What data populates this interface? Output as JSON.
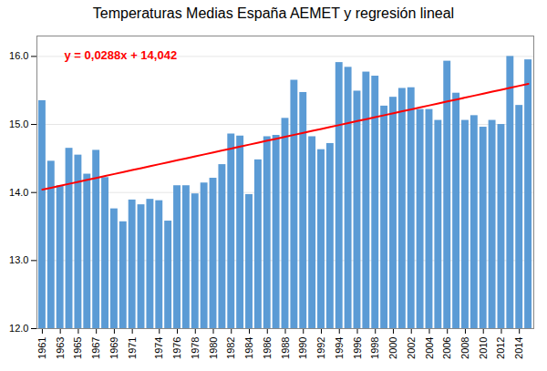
{
  "chart_data": {
    "type": "bar",
    "title": "Temperaturas Medias España AEMET y regresión lineal",
    "categories": [
      "1961",
      null,
      "1963",
      null,
      "1965",
      null,
      "1967",
      null,
      "1969",
      null,
      "1971",
      null,
      null,
      "1974",
      null,
      "1976",
      null,
      "1978",
      null,
      "1980",
      null,
      "1982",
      null,
      "1984",
      null,
      "1986",
      null,
      "1988",
      null,
      "1990",
      null,
      "1992",
      null,
      "1994",
      null,
      "1996",
      null,
      "1998",
      null,
      "2000",
      null,
      "2002",
      null,
      "2004",
      null,
      "2006",
      null,
      "2008",
      null,
      "2010",
      null,
      "2012",
      null,
      "2014",
      null
    ],
    "series": [
      {
        "type": "bar",
        "color": "#5B9BD5",
        "values": [
          15.35,
          14.46,
          14.1,
          14.65,
          14.55,
          14.27,
          14.62,
          14.22,
          13.76,
          13.57,
          13.89,
          13.82,
          13.9,
          13.88,
          13.58,
          14.1,
          14.1,
          13.98,
          14.14,
          14.21,
          14.41,
          14.86,
          14.83,
          13.97,
          14.48,
          14.82,
          14.84,
          15.09,
          15.65,
          15.47,
          14.82,
          14.63,
          14.72,
          15.91,
          15.84,
          15.49,
          15.77,
          15.71,
          15.27,
          15.4,
          15.53,
          15.54,
          15.22,
          15.22,
          15.06,
          15.93,
          15.46,
          15.06,
          15.13,
          14.96,
          15.06,
          15.0,
          16.0,
          15.28,
          15.95
        ]
      },
      {
        "type": "line",
        "color": "#FF0000",
        "values": [
          14.042,
          14.0708,
          14.0996,
          14.1284,
          14.1572,
          14.186,
          14.2148,
          14.2436,
          14.2724,
          14.3012,
          14.33,
          14.3588,
          14.3876,
          14.4164,
          14.4452,
          14.474,
          14.5028,
          14.5316,
          14.5604,
          14.5892,
          14.618,
          14.6468,
          14.6756,
          14.7044,
          14.7332,
          14.762,
          14.7908,
          14.8196,
          14.8484,
          14.8772,
          14.906,
          14.9348,
          14.9636,
          14.9924,
          15.0212,
          15.05,
          15.0788,
          15.1076,
          15.1364,
          15.1652,
          15.194,
          15.2228,
          15.2516,
          15.2804,
          15.3092,
          15.338,
          15.3668,
          15.3956,
          15.4244,
          15.4532,
          15.482,
          15.5108,
          15.5396,
          15.5684,
          15.5972
        ]
      }
    ],
    "annotations": [
      {
        "text": "y = 0,0288x + 14,042",
        "color": "#FF0000"
      }
    ],
    "ylim": [
      12,
      16.3
    ],
    "yticks": [
      12,
      13,
      14,
      15,
      16
    ],
    "grid": true
  }
}
